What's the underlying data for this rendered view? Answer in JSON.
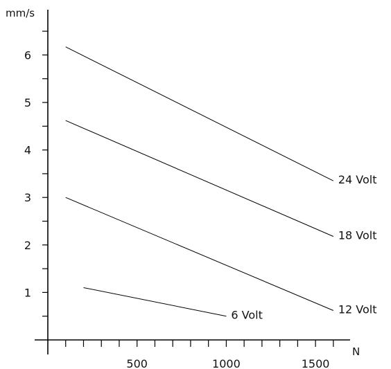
{
  "chart_data": {
    "type": "line",
    "title": "",
    "xlabel": "",
    "ylabel": "",
    "x_unit": "N",
    "y_unit": "mm/s",
    "xlim": [
      0,
      1700
    ],
    "ylim": [
      0,
      6.8
    ],
    "x_ticks": [
      500,
      1000,
      1500
    ],
    "y_ticks": [
      1,
      2,
      3,
      4,
      5,
      6
    ],
    "x_minor_step": 100,
    "y_minor_step": 0.5,
    "grid": false,
    "legend": "inline-end-labels",
    "series": [
      {
        "name": "24 Volt",
        "x": [
          100,
          1600
        ],
        "y": [
          6.17,
          3.35
        ]
      },
      {
        "name": "18 Volt",
        "x": [
          100,
          1600
        ],
        "y": [
          4.62,
          2.18
        ]
      },
      {
        "name": "12 Volt",
        "x": [
          100,
          1600
        ],
        "y": [
          3.0,
          0.62
        ]
      },
      {
        "name": "6 Volt",
        "x": [
          200,
          1000
        ],
        "y": [
          1.1,
          0.5
        ]
      }
    ]
  }
}
